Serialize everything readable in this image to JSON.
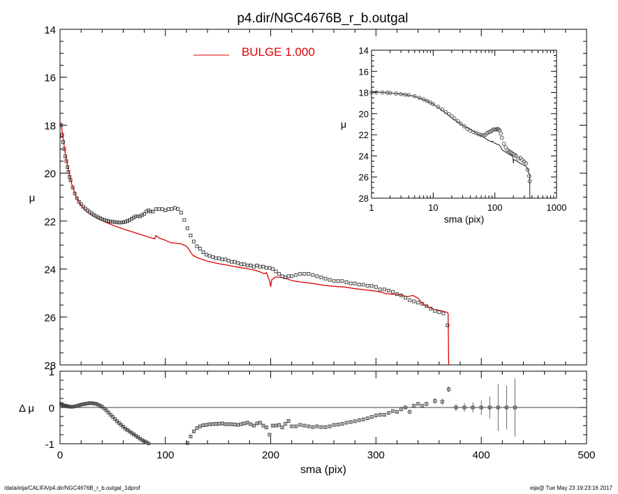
{
  "chart_data": [
    {
      "id": "main",
      "type": "scatter",
      "title": "p4.dir/NGC4676B_r_b.outgal",
      "xlabel": "",
      "ylabel": "μ",
      "xlim": [
        0,
        500
      ],
      "ylim": [
        28,
        14
      ],
      "yticks": [
        "14",
        "16",
        "18",
        "20",
        "22",
        "24",
        "26",
        "28"
      ],
      "legend": {
        "label": "BULGE",
        "value": "1.000",
        "color": "#dd0000",
        "placement": "top-center"
      },
      "series": [
        {
          "name": "data",
          "marker": "open-square",
          "x": [
            1,
            2,
            3,
            4,
            5,
            6,
            7,
            8,
            9,
            10,
            12,
            14,
            16,
            18,
            20,
            22,
            24,
            26,
            28,
            30,
            32,
            34,
            36,
            38,
            40,
            42,
            44,
            46,
            48,
            50,
            52,
            54,
            56,
            58,
            60,
            62,
            64,
            66,
            68,
            70,
            72,
            74,
            76,
            78,
            80,
            82,
            84,
            86,
            88,
            91,
            94,
            97,
            100,
            103,
            106,
            109,
            112,
            115,
            118,
            121,
            124,
            127,
            130,
            133,
            136,
            139,
            142,
            145,
            148,
            151,
            154,
            157,
            160,
            163,
            166,
            169,
            172,
            175,
            178,
            181,
            184,
            187,
            190,
            193,
            196,
            199,
            202,
            205,
            208,
            211,
            214,
            217,
            220,
            224,
            228,
            232,
            236,
            240,
            244,
            248,
            252,
            256,
            260,
            264,
            268,
            272,
            276,
            280,
            284,
            288,
            292,
            296,
            300,
            304,
            308,
            312,
            316,
            320,
            324,
            328,
            332,
            336,
            340,
            344,
            348,
            352,
            356,
            360,
            364,
            368
          ],
          "y": [
            18.0,
            18.4,
            18.7,
            19.0,
            19.3,
            19.5,
            19.75,
            19.95,
            20.15,
            20.3,
            20.6,
            20.85,
            21.05,
            21.2,
            21.3,
            21.4,
            21.48,
            21.55,
            21.62,
            21.68,
            21.74,
            21.79,
            21.84,
            21.88,
            21.92,
            21.95,
            21.98,
            22.0,
            22.02,
            22.03,
            22.04,
            22.05,
            22.06,
            22.06,
            22.05,
            22.03,
            22.0,
            21.96,
            21.9,
            21.85,
            21.8,
            21.8,
            21.8,
            21.75,
            21.7,
            21.6,
            21.55,
            21.6,
            21.6,
            21.5,
            21.5,
            21.5,
            21.55,
            21.5,
            21.5,
            21.45,
            21.5,
            21.65,
            21.95,
            22.3,
            22.6,
            22.85,
            23.05,
            23.15,
            23.3,
            23.4,
            23.45,
            23.5,
            23.55,
            23.55,
            23.6,
            23.6,
            23.65,
            23.7,
            23.7,
            23.75,
            23.8,
            23.8,
            23.85,
            23.85,
            23.9,
            23.85,
            23.9,
            23.9,
            23.95,
            23.95,
            24.0,
            24.1,
            24.2,
            24.3,
            24.35,
            24.3,
            24.3,
            24.25,
            24.2,
            24.2,
            24.2,
            24.25,
            24.3,
            24.35,
            24.4,
            24.45,
            24.5,
            24.5,
            24.5,
            24.55,
            24.6,
            24.6,
            24.65,
            24.65,
            24.7,
            24.7,
            24.75,
            24.85,
            24.85,
            24.9,
            24.95,
            25.05,
            25.1,
            25.2,
            25.3,
            25.35,
            25.4,
            25.45,
            25.55,
            25.65,
            25.75,
            25.8,
            25.85,
            26.35
          ]
        },
        {
          "name": "BULGE",
          "color": "#dd0000",
          "x": [
            1,
            3,
            5,
            8,
            11,
            15,
            20,
            25,
            30,
            35,
            40,
            45,
            50,
            55,
            60,
            65,
            70,
            75,
            80,
            85,
            90,
            91,
            93,
            95,
            100,
            105,
            110,
            115,
            120,
            122,
            124,
            126,
            130,
            135,
            140,
            150,
            160,
            170,
            180,
            185,
            190,
            194,
            196,
            199,
            200,
            201,
            203,
            205,
            210,
            215,
            220,
            225,
            230,
            240,
            250,
            260,
            270,
            280,
            290,
            300,
            305,
            310,
            315,
            320,
            325,
            330,
            335,
            340,
            345,
            350,
            355,
            360,
            365,
            367,
            368,
            368.5,
            369
          ],
          "y": [
            17.9,
            18.6,
            19.2,
            19.9,
            20.45,
            20.95,
            21.35,
            21.6,
            21.75,
            21.87,
            21.98,
            22.08,
            22.17,
            22.25,
            22.33,
            22.4,
            22.47,
            22.54,
            22.61,
            22.68,
            22.74,
            22.6,
            22.68,
            22.72,
            22.8,
            22.9,
            22.92,
            22.95,
            23.05,
            23.15,
            23.3,
            23.42,
            23.52,
            23.6,
            23.67,
            23.77,
            23.85,
            23.93,
            24.0,
            24.05,
            24.12,
            24.2,
            24.15,
            24.5,
            24.75,
            24.45,
            24.38,
            24.33,
            24.35,
            24.4,
            24.48,
            24.52,
            24.55,
            24.6,
            24.68,
            24.72,
            24.75,
            24.82,
            24.87,
            24.92,
            24.97,
            25.03,
            25.05,
            25.05,
            25.1,
            25.15,
            25.1,
            25.22,
            25.48,
            25.58,
            25.68,
            25.72,
            25.78,
            25.8,
            25.82,
            25.85,
            28.2
          ]
        }
      ]
    },
    {
      "id": "inset",
      "type": "scatter",
      "xscale": "log",
      "xlabel": "sma (pix)",
      "ylabel": "μ",
      "xlim": [
        1,
        1000
      ],
      "ylim": [
        28,
        14
      ],
      "xticks": [
        "1",
        "10",
        "100",
        "1000"
      ],
      "yticks": [
        "14",
        "16",
        "18",
        "20",
        "22",
        "24",
        "26",
        "28"
      ],
      "series": [
        {
          "name": "data",
          "marker": "open-circle",
          "x": [
            1,
            1.2,
            1.5,
            1.8,
            2,
            2.5,
            3,
            3.5,
            4,
            5,
            6,
            7,
            8,
            9,
            10,
            12,
            14,
            16,
            18,
            20,
            22,
            25,
            28,
            32,
            36,
            40,
            45,
            50,
            55,
            60,
            65,
            70,
            75,
            80,
            85,
            90,
            95,
            100,
            105,
            110,
            115,
            120,
            125,
            130,
            140,
            150,
            160,
            170,
            180,
            190,
            200,
            210,
            220,
            240,
            260,
            280,
            300,
            320,
            340,
            360,
            368
          ],
          "y": [
            18.0,
            18.0,
            18.0,
            18.02,
            18.05,
            18.1,
            18.15,
            18.2,
            18.25,
            18.35,
            18.5,
            18.65,
            18.8,
            18.95,
            19.1,
            19.35,
            19.6,
            19.85,
            20.05,
            20.25,
            20.45,
            20.7,
            20.95,
            21.2,
            21.45,
            21.6,
            21.75,
            21.85,
            21.95,
            22.02,
            22.05,
            22.0,
            21.85,
            21.75,
            21.7,
            21.6,
            21.5,
            21.5,
            21.5,
            21.45,
            21.5,
            21.6,
            21.9,
            22.3,
            22.85,
            23.2,
            23.45,
            23.55,
            23.65,
            23.75,
            23.85,
            23.9,
            24.0,
            24.25,
            24.2,
            24.4,
            24.55,
            24.7,
            25.3,
            25.9,
            26.4
          ]
        },
        {
          "name": "BULGE",
          "color": "#000000",
          "x": [
            1,
            2,
            3,
            5,
            8,
            10,
            15,
            20,
            30,
            40,
            50,
            60,
            70,
            80,
            90,
            91,
            95,
            100,
            110,
            120,
            125,
            130,
            140,
            150,
            170,
            190,
            196,
            200,
            201,
            205,
            220,
            250,
            300,
            320,
            330,
            340,
            350,
            360,
            365,
            368,
            369
          ],
          "y": [
            17.9,
            18.05,
            18.15,
            18.35,
            18.8,
            19.1,
            19.8,
            20.4,
            21.1,
            21.5,
            21.85,
            22.1,
            22.35,
            22.55,
            22.7,
            22.6,
            22.7,
            22.8,
            22.9,
            23.0,
            23.2,
            23.4,
            23.55,
            23.65,
            23.85,
            24.0,
            24.15,
            24.7,
            24.4,
            24.35,
            24.45,
            24.65,
            24.9,
            25.0,
            25.1,
            25.2,
            25.5,
            25.7,
            25.8,
            25.85,
            28.2
          ]
        }
      ]
    },
    {
      "id": "residual",
      "type": "scatter",
      "xlabel": "sma (pix)",
      "ylabel": "Δ μ",
      "xlim": [
        0,
        500
      ],
      "ylim": [
        -1,
        1
      ],
      "xticks": [
        "0",
        "100",
        "200",
        "300",
        "400",
        "500"
      ],
      "yticks": [
        "-1",
        "0",
        "1"
      ],
      "series": [
        {
          "name": "residual",
          "marker": "open-square",
          "x": [
            1,
            2,
            3,
            4,
            5,
            6,
            7,
            8,
            9,
            10,
            12,
            14,
            16,
            18,
            20,
            22,
            24,
            26,
            28,
            30,
            32,
            34,
            36,
            38,
            40,
            42,
            44,
            46,
            48,
            50,
            52,
            54,
            56,
            58,
            60,
            62,
            64,
            66,
            68,
            70,
            72,
            74,
            76,
            78,
            80,
            82,
            84,
            121,
            124,
            127,
            130,
            133,
            136,
            139,
            142,
            145,
            148,
            151,
            154,
            157,
            160,
            163,
            166,
            169,
            172,
            175,
            178,
            181,
            184,
            187,
            190,
            193,
            196,
            199,
            202,
            205,
            208,
            211,
            214,
            217,
            220,
            224,
            228,
            232,
            236,
            240,
            244,
            248,
            252,
            256,
            260,
            264,
            268,
            272,
            276,
            280,
            284,
            288,
            292,
            296,
            300,
            304,
            308,
            312,
            316,
            320,
            324,
            328,
            332,
            336,
            340,
            344
          ],
          "y": [
            0.1,
            0.08,
            0.06,
            0.05,
            0.05,
            0.04,
            0.03,
            0.03,
            0.02,
            0.02,
            0.02,
            0.03,
            0.04,
            0.06,
            0.08,
            0.09,
            0.1,
            0.11,
            0.12,
            0.12,
            0.11,
            0.1,
            0.08,
            0.05,
            0.02,
            -0.03,
            -0.08,
            -0.14,
            -0.2,
            -0.26,
            -0.32,
            -0.38,
            -0.43,
            -0.48,
            -0.53,
            -0.58,
            -0.62,
            -0.66,
            -0.7,
            -0.74,
            -0.78,
            -0.82,
            -0.86,
            -0.9,
            -0.93,
            -0.96,
            -0.99,
            -0.98,
            -0.8,
            -0.66,
            -0.57,
            -0.52,
            -0.49,
            -0.48,
            -0.46,
            -0.46,
            -0.45,
            -0.45,
            -0.44,
            -0.46,
            -0.46,
            -0.46,
            -0.47,
            -0.48,
            -0.46,
            -0.44,
            -0.42,
            -0.46,
            -0.5,
            -0.44,
            -0.42,
            -0.5,
            -0.55,
            -0.75,
            -0.5,
            -0.5,
            -0.48,
            -0.55,
            -0.45,
            -0.37,
            -0.52,
            -0.52,
            -0.48,
            -0.5,
            -0.52,
            -0.54,
            -0.52,
            -0.54,
            -0.54,
            -0.52,
            -0.48,
            -0.47,
            -0.45,
            -0.42,
            -0.4,
            -0.38,
            -0.35,
            -0.33,
            -0.3,
            -0.26,
            -0.22,
            -0.2,
            -0.2,
            -0.15,
            -0.1,
            -0.12,
            -0.05,
            0.0,
            -0.12,
            0.05,
            0.1,
            0.05
          ],
          "err": 0.04
        },
        {
          "name": "residual-errorbars",
          "marker": "open-square",
          "x": [
            348,
            356,
            363,
            369,
            376,
            384,
            392,
            400,
            408,
            416,
            424,
            432
          ],
          "y": [
            0.1,
            0.18,
            0.16,
            0.5,
            0.0,
            0.0,
            0.0,
            0.0,
            0.0,
            0.0,
            0.0,
            0.0
          ],
          "err": [
            0.06,
            0.08,
            0.08,
            0.08,
            0.1,
            0.12,
            0.14,
            0.2,
            0.3,
            0.65,
            0.6,
            0.8
          ]
        }
      ]
    }
  ],
  "footer": {
    "left": "/data/eija/CALIFA/p4.dir/NGC4676B_r_b.outgal_1dprof",
    "right": "eija@  Tue May 23 19:23:16 2017"
  }
}
